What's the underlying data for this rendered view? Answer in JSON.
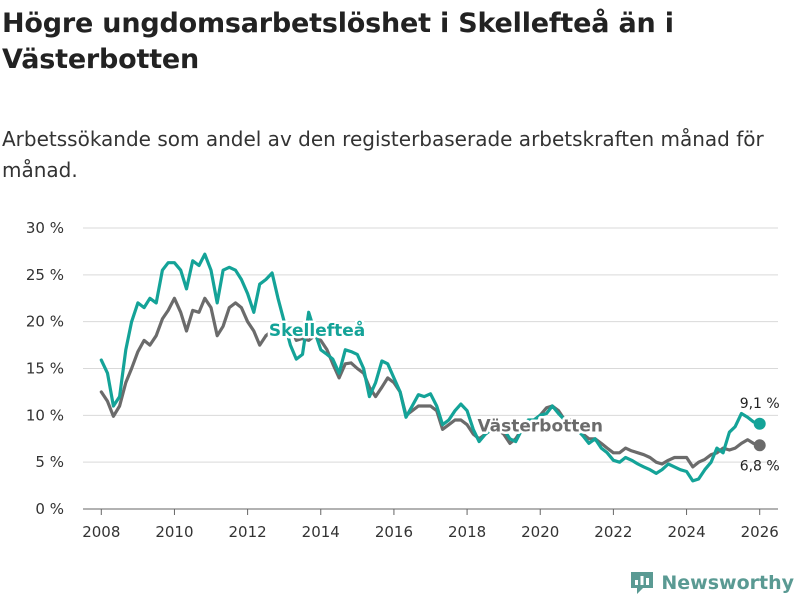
{
  "page": {
    "title": "Högre ungdomsarbetslöshet i Skellefteå än i Västerbotten",
    "subtitle": "Arbetssökande som andel av den registerbaserade arbetskraften månad för månad.",
    "brand": "Newsworthy"
  },
  "colors": {
    "skelleftea": "#14a398",
    "vasterbotten": "#6b6b6b",
    "grid": "#d9d9d9",
    "brand": "#5a9a93"
  },
  "chart_data": {
    "type": "line",
    "title": "Högre ungdomsarbetslöshet i Skellefteå än i Västerbotten",
    "xlabel": "",
    "ylabel": "",
    "xlim": [
      2007.5,
      2026.5
    ],
    "ylim": [
      0,
      30
    ],
    "yticks": [
      0,
      5,
      10,
      15,
      20,
      25,
      30
    ],
    "ytick_labels": [
      "0 %",
      "5 %",
      "10 %",
      "15 %",
      "20 %",
      "25 %",
      "30 %"
    ],
    "xticks": [
      2008,
      2010,
      2012,
      2014,
      2016,
      2018,
      2020,
      2022,
      2024,
      2026
    ],
    "xtick_labels": [
      "2008",
      "2010",
      "2012",
      "2014",
      "2016",
      "2018",
      "2020",
      "2022",
      "2024",
      "2026"
    ],
    "grid": true,
    "series": [
      {
        "name": "Västerbotten",
        "label": "Västerbotten",
        "color": "#6b6b6b",
        "end_label": "6,8 %",
        "x": [
          2008.0,
          2008.17,
          2008.33,
          2008.5,
          2008.67,
          2008.83,
          2009.0,
          2009.17,
          2009.33,
          2009.5,
          2009.67,
          2009.83,
          2010.0,
          2010.17,
          2010.33,
          2010.5,
          2010.67,
          2010.83,
          2011.0,
          2011.17,
          2011.33,
          2011.5,
          2011.67,
          2011.83,
          2012.0,
          2012.17,
          2012.33,
          2012.5,
          2012.67,
          2012.83,
          2013.0,
          2013.17,
          2013.33,
          2013.5,
          2013.67,
          2013.83,
          2014.0,
          2014.17,
          2014.33,
          2014.5,
          2014.67,
          2014.83,
          2015.0,
          2015.17,
          2015.33,
          2015.5,
          2015.67,
          2015.83,
          2016.0,
          2016.17,
          2016.33,
          2016.5,
          2016.67,
          2016.83,
          2017.0,
          2017.17,
          2017.33,
          2017.5,
          2017.67,
          2017.83,
          2018.0,
          2018.17,
          2018.33,
          2018.5,
          2018.67,
          2018.83,
          2019.0,
          2019.17,
          2019.33,
          2019.5,
          2019.67,
          2019.83,
          2020.0,
          2020.17,
          2020.33,
          2020.5,
          2020.67,
          2020.83,
          2021.0,
          2021.17,
          2021.33,
          2021.5,
          2021.67,
          2021.83,
          2022.0,
          2022.17,
          2022.33,
          2022.5,
          2022.67,
          2022.83,
          2023.0,
          2023.17,
          2023.33,
          2023.5,
          2023.67,
          2023.83,
          2024.0,
          2024.17,
          2024.33,
          2024.5,
          2024.67,
          2024.83,
          2025.0,
          2025.17,
          2025.33,
          2025.5,
          2025.67,
          2025.83,
          2026.0
        ],
        "values": [
          12.5,
          11.5,
          9.9,
          11.0,
          13.5,
          15.0,
          16.8,
          18.0,
          17.5,
          18.5,
          20.3,
          21.2,
          22.5,
          21.0,
          19.0,
          21.2,
          21.0,
          22.5,
          21.5,
          18.5,
          19.5,
          21.5,
          22.0,
          21.5,
          20.0,
          19.0,
          17.5,
          18.5,
          19.0,
          18.5,
          18.6,
          19.5,
          18.0,
          18.2,
          18.0,
          18.5,
          18.0,
          17.0,
          15.5,
          14.0,
          15.5,
          15.6,
          15.0,
          14.5,
          13.0,
          12.0,
          13.0,
          14.0,
          13.5,
          12.5,
          10.0,
          10.5,
          11.0,
          11.0,
          11.0,
          10.5,
          8.5,
          9.0,
          9.5,
          9.5,
          9.0,
          8.0,
          7.5,
          8.0,
          8.5,
          8.5,
          8.0,
          7.0,
          7.5,
          8.5,
          9.0,
          9.5,
          10.0,
          10.8,
          11.0,
          10.5,
          9.5,
          9.5,
          9.0,
          8.0,
          7.5,
          7.5,
          7.0,
          6.5,
          6.0,
          6.0,
          6.5,
          6.2,
          6.0,
          5.8,
          5.5,
          5.0,
          4.8,
          5.2,
          5.5,
          5.5,
          5.5,
          4.5,
          5.0,
          5.3,
          5.8,
          6.0,
          6.5,
          6.3,
          6.5,
          7.0,
          7.4,
          7.0,
          6.8
        ]
      },
      {
        "name": "Skellefteå",
        "label": "Skellefteå",
        "color": "#14a398",
        "end_label": "9,1 %",
        "x": [
          2008.0,
          2008.17,
          2008.33,
          2008.5,
          2008.67,
          2008.83,
          2009.0,
          2009.17,
          2009.33,
          2009.5,
          2009.67,
          2009.83,
          2010.0,
          2010.17,
          2010.33,
          2010.5,
          2010.67,
          2010.83,
          2011.0,
          2011.17,
          2011.33,
          2011.5,
          2011.67,
          2011.83,
          2012.0,
          2012.17,
          2012.33,
          2012.5,
          2012.67,
          2012.83,
          2013.0,
          2013.17,
          2013.33,
          2013.5,
          2013.67,
          2013.83,
          2014.0,
          2014.17,
          2014.33,
          2014.5,
          2014.67,
          2014.83,
          2015.0,
          2015.17,
          2015.33,
          2015.5,
          2015.67,
          2015.83,
          2016.0,
          2016.17,
          2016.33,
          2016.5,
          2016.67,
          2016.83,
          2017.0,
          2017.17,
          2017.33,
          2017.5,
          2017.67,
          2017.83,
          2018.0,
          2018.17,
          2018.33,
          2018.5,
          2018.67,
          2018.83,
          2019.0,
          2019.17,
          2019.33,
          2019.5,
          2019.67,
          2019.83,
          2020.0,
          2020.17,
          2020.33,
          2020.5,
          2020.67,
          2020.83,
          2021.0,
          2021.17,
          2021.33,
          2021.5,
          2021.67,
          2021.83,
          2022.0,
          2022.17,
          2022.33,
          2022.5,
          2022.67,
          2022.83,
          2023.0,
          2023.17,
          2023.33,
          2023.5,
          2023.67,
          2023.83,
          2024.0,
          2024.17,
          2024.33,
          2024.5,
          2024.67,
          2024.83,
          2025.0,
          2025.17,
          2025.33,
          2025.5,
          2025.67,
          2025.83,
          2026.0
        ],
        "values": [
          15.9,
          14.5,
          11.0,
          12.0,
          17.0,
          20.0,
          22.0,
          21.5,
          22.5,
          22.0,
          25.5,
          26.3,
          26.3,
          25.5,
          23.5,
          26.5,
          26.0,
          27.2,
          25.5,
          22.0,
          25.5,
          25.8,
          25.5,
          24.5,
          23.0,
          21.0,
          24.0,
          24.5,
          25.2,
          22.5,
          20.0,
          17.5,
          16.0,
          16.5,
          21.0,
          19.0,
          17.0,
          16.5,
          16.0,
          14.5,
          17.0,
          16.8,
          16.5,
          15.0,
          12.0,
          13.5,
          15.8,
          15.5,
          14.0,
          12.5,
          9.8,
          11.0,
          12.2,
          12.0,
          12.3,
          11.0,
          9.0,
          9.5,
          10.5,
          11.2,
          10.5,
          8.5,
          7.2,
          8.0,
          8.5,
          8.8,
          8.5,
          7.5,
          7.2,
          8.5,
          9.5,
          9.5,
          10.0,
          10.2,
          11.0,
          10.2,
          9.5,
          9.0,
          8.5,
          7.8,
          7.0,
          7.5,
          6.5,
          6.0,
          5.2,
          5.0,
          5.5,
          5.2,
          4.8,
          4.5,
          4.2,
          3.8,
          4.2,
          4.8,
          4.5,
          4.2,
          4.0,
          3.0,
          3.2,
          4.2,
          5.0,
          6.5,
          6.0,
          8.2,
          8.8,
          10.2,
          9.8,
          9.3,
          9.1
        ]
      }
    ]
  }
}
